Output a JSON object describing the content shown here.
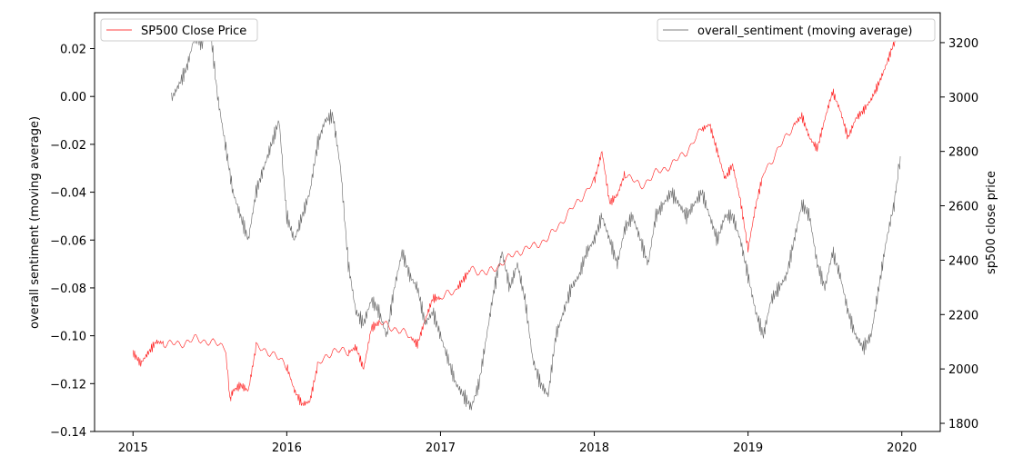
{
  "chart_data": {
    "type": "line",
    "ylabel_left": "overall sentiment (moving average)",
    "ylabel_right": "sp500 close price",
    "xlim": [
      2014.75,
      2020.25
    ],
    "ylim_left": [
      -0.14,
      0.035
    ],
    "ylim_right": [
      1770,
      3310
    ],
    "x_ticks": [
      2015,
      2016,
      2017,
      2018,
      2019,
      2020
    ],
    "left_ticks": [
      0.02,
      0.0,
      -0.02,
      -0.04,
      -0.06,
      -0.08,
      -0.1,
      -0.12,
      -0.14
    ],
    "left_tick_labels": [
      "0.02",
      "0.00",
      "−0.02",
      "−0.04",
      "−0.06",
      "−0.08",
      "−0.10",
      "−0.12",
      "−0.14"
    ],
    "right_ticks": [
      3200,
      3000,
      2800,
      2600,
      2400,
      2200,
      2000,
      1800
    ],
    "right_tick_labels": [
      "3200",
      "3000",
      "2800",
      "2600",
      "2400",
      "2200",
      "2000",
      "1800"
    ],
    "grid": false,
    "series": [
      {
        "name": "SP500 Close Price",
        "axis": "right",
        "color": "#ff0000",
        "x": [
          2015.0,
          2015.05,
          2015.1,
          2015.15,
          2015.2,
          2015.3,
          2015.4,
          2015.5,
          2015.6,
          2015.63,
          2015.65,
          2015.7,
          2015.75,
          2015.8,
          2015.9,
          2016.0,
          2016.05,
          2016.1,
          2016.15,
          2016.2,
          2016.3,
          2016.4,
          2016.45,
          2016.5,
          2016.55,
          2016.6,
          2016.7,
          2016.8,
          2016.85,
          2016.9,
          2016.95,
          2017.0,
          2017.1,
          2017.15,
          2017.2,
          2017.3,
          2017.4,
          2017.5,
          2017.6,
          2017.7,
          2017.8,
          2017.9,
          2018.0,
          2018.05,
          2018.1,
          2018.15,
          2018.2,
          2018.3,
          2018.4,
          2018.5,
          2018.6,
          2018.7,
          2018.75,
          2018.8,
          2018.85,
          2018.9,
          2018.95,
          2019.0,
          2019.05,
          2019.1,
          2019.2,
          2019.3,
          2019.35,
          2019.4,
          2019.45,
          2019.5,
          2019.55,
          2019.6,
          2019.65,
          2019.7,
          2019.75,
          2019.8,
          2019.85,
          2019.9,
          2019.95,
          2019.99
        ],
        "values": [
          2060,
          2020,
          2060,
          2100,
          2095,
          2090,
          2110,
          2100,
          2080,
          1890,
          1920,
          1940,
          1920,
          2080,
          2060,
          2010,
          1920,
          1870,
          1880,
          2010,
          2070,
          2060,
          2080,
          2000,
          2150,
          2170,
          2150,
          2120,
          2090,
          2180,
          2260,
          2260,
          2290,
          2330,
          2370,
          2350,
          2390,
          2430,
          2450,
          2480,
          2550,
          2620,
          2690,
          2800,
          2610,
          2640,
          2720,
          2670,
          2720,
          2750,
          2800,
          2880,
          2900,
          2800,
          2700,
          2750,
          2620,
          2440,
          2600,
          2720,
          2810,
          2900,
          2930,
          2850,
          2810,
          2920,
          3020,
          2950,
          2850,
          2920,
          2950,
          2990,
          3050,
          3120,
          3200,
          3230
        ]
      },
      {
        "name": "overall_sentiment (moving average)",
        "axis": "left",
        "color": "#555555",
        "x": [
          2015.25,
          2015.3,
          2015.35,
          2015.4,
          2015.45,
          2015.5,
          2015.55,
          2015.6,
          2015.65,
          2015.7,
          2015.75,
          2015.8,
          2015.85,
          2015.9,
          2015.95,
          2016.0,
          2016.05,
          2016.1,
          2016.15,
          2016.2,
          2016.25,
          2016.3,
          2016.35,
          2016.4,
          2016.45,
          2016.5,
          2016.55,
          2016.6,
          2016.65,
          2016.7,
          2016.75,
          2016.8,
          2016.85,
          2016.9,
          2016.95,
          2017.0,
          2017.05,
          2017.1,
          2017.15,
          2017.2,
          2017.25,
          2017.3,
          2017.35,
          2017.4,
          2017.45,
          2017.5,
          2017.55,
          2017.6,
          2017.65,
          2017.7,
          2017.75,
          2017.8,
          2017.85,
          2017.9,
          2017.95,
          2018.0,
          2018.05,
          2018.1,
          2018.15,
          2018.2,
          2018.25,
          2018.3,
          2018.35,
          2018.4,
          2018.45,
          2018.5,
          2018.55,
          2018.6,
          2018.65,
          2018.7,
          2018.75,
          2018.8,
          2018.85,
          2018.9,
          2018.95,
          2019.0,
          2019.05,
          2019.1,
          2019.15,
          2019.2,
          2019.25,
          2019.3,
          2019.35,
          2019.4,
          2019.45,
          2019.5,
          2019.55,
          2019.6,
          2019.65,
          2019.7,
          2019.75,
          2019.8,
          2019.85,
          2019.9,
          2019.95,
          2019.99
        ],
        "values": [
          -0.001,
          0.005,
          0.012,
          0.025,
          0.022,
          0.03,
          0.0,
          -0.02,
          -0.04,
          -0.05,
          -0.06,
          -0.04,
          -0.03,
          -0.02,
          -0.01,
          -0.05,
          -0.06,
          -0.05,
          -0.04,
          -0.02,
          -0.01,
          -0.008,
          -0.03,
          -0.07,
          -0.09,
          -0.095,
          -0.085,
          -0.09,
          -0.1,
          -0.08,
          -0.065,
          -0.075,
          -0.08,
          -0.095,
          -0.09,
          -0.1,
          -0.11,
          -0.12,
          -0.125,
          -0.13,
          -0.12,
          -0.1,
          -0.08,
          -0.065,
          -0.08,
          -0.07,
          -0.085,
          -0.11,
          -0.12,
          -0.125,
          -0.1,
          -0.09,
          -0.08,
          -0.075,
          -0.065,
          -0.06,
          -0.05,
          -0.06,
          -0.07,
          -0.055,
          -0.05,
          -0.06,
          -0.07,
          -0.05,
          -0.045,
          -0.04,
          -0.045,
          -0.05,
          -0.045,
          -0.04,
          -0.05,
          -0.06,
          -0.05,
          -0.05,
          -0.06,
          -0.075,
          -0.09,
          -0.1,
          -0.085,
          -0.08,
          -0.075,
          -0.06,
          -0.045,
          -0.05,
          -0.07,
          -0.08,
          -0.065,
          -0.075,
          -0.09,
          -0.1,
          -0.105,
          -0.1,
          -0.08,
          -0.06,
          -0.045,
          -0.025
        ]
      }
    ]
  }
}
